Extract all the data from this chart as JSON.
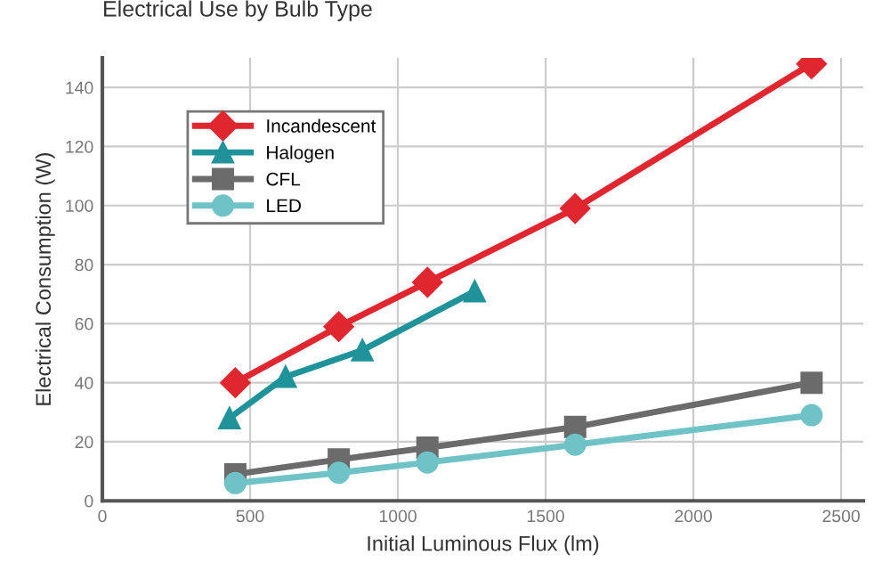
{
  "chart_data": {
    "type": "line",
    "title": "Electrical Use by Bulb Type",
    "xlabel": "Initial Luminous Flux (lm)",
    "ylabel": "Electrical Consumption (W)",
    "xlim": [
      0,
      2575
    ],
    "ylim": [
      0,
      150
    ],
    "xticks": [
      0,
      500,
      1000,
      1500,
      2000,
      2500
    ],
    "yticks": [
      0,
      20,
      40,
      60,
      80,
      100,
      120,
      140
    ],
    "grid": true,
    "legend": "top left",
    "series": [
      {
        "name": "Incandescent",
        "color": "#e0262f",
        "marker": "diamond",
        "x": [
          450,
          800,
          1100,
          1600,
          2400
        ],
        "values": [
          40,
          59,
          74,
          99,
          148
        ]
      },
      {
        "name": "Halogen",
        "color": "#1f9399",
        "marker": "triangle",
        "x": [
          430,
          620,
          880,
          1260
        ],
        "values": [
          28,
          42,
          51,
          71
        ]
      },
      {
        "name": "CFL",
        "color": "#6b6b6b",
        "marker": "square",
        "x": [
          450,
          800,
          1100,
          1600,
          2400
        ],
        "values": [
          9,
          14,
          18,
          25,
          40
        ]
      },
      {
        "name": "LED",
        "color": "#6fc3c6",
        "marker": "circle",
        "x": [
          450,
          800,
          1100,
          1600,
          2400
        ],
        "values": [
          6,
          9.5,
          13,
          19,
          29
        ]
      }
    ]
  }
}
